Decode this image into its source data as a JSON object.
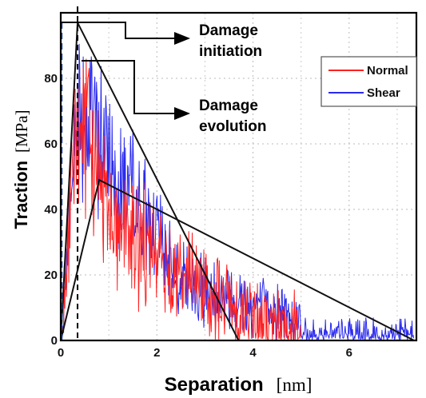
{
  "chart_data": {
    "type": "line",
    "xlabel": {
      "main": "Separation",
      "unit": "[nm]"
    },
    "ylabel": {
      "main": "Traction",
      "unit": "[MPa]"
    },
    "xlim": [
      0,
      7.4
    ],
    "ylim": [
      0,
      100
    ],
    "x_ticks": [
      0,
      2,
      4,
      6
    ],
    "y_ticks": [
      0,
      20,
      40,
      60,
      80
    ],
    "grid": "dotted",
    "legend_position": "top-right",
    "series": [
      {
        "name": "Normal",
        "color": "#ff2020"
      },
      {
        "name": "Shear",
        "color": "#2a2aee"
      }
    ],
    "bilinear_models": [
      {
        "id": "normal-model",
        "points": [
          [
            0,
            0
          ],
          [
            0.35,
            97
          ],
          [
            3.7,
            0
          ]
        ]
      },
      {
        "id": "shear-model",
        "points": [
          [
            0,
            0
          ],
          [
            0.8,
            49
          ],
          [
            7.35,
            0
          ]
        ]
      }
    ],
    "initiation_marker_x": 0.35,
    "annotations": [
      {
        "id": "damage-initiation",
        "lines": [
          "Damage",
          "initiation"
        ]
      },
      {
        "id": "damage-evolution",
        "lines": [
          "Damage",
          "evolution"
        ]
      }
    ]
  }
}
